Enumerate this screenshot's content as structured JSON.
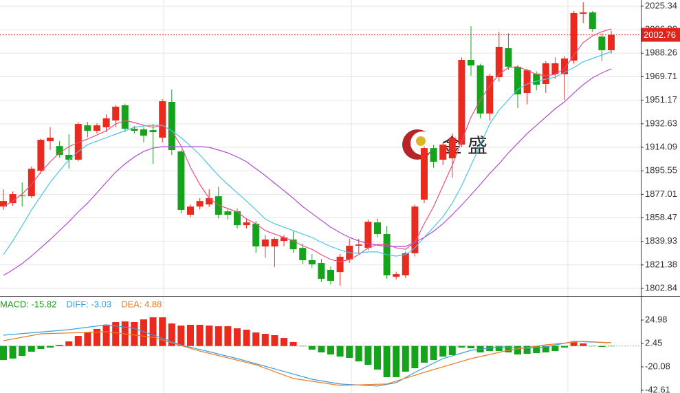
{
  "chart_data": [
    {
      "type": "candlestick",
      "up_color": "#ea2a1f",
      "down_color": "#16a31c",
      "ylim": [
        1796.9,
        2030.2
      ],
      "yticks": [
        2025.34,
        {
          "value": 2006.8,
          "label": "2006.80"
        },
        1988.26,
        1969.71,
        1951.17,
        1932.63,
        1914.09,
        1895.55,
        1877.01,
        1858.47,
        1839.93,
        1821.38,
        1802.84
      ],
      "grid": true,
      "current_price": 2002.76,
      "current_price_color": "#e0241b",
      "watermark": "金 盛",
      "open": [
        1867.4,
        1870.1,
        1876.1,
        1875.5,
        1895.6,
        1918.9,
        1915.1,
        1908.1,
        1904.3,
        1931.4,
        1927.1,
        1929.8,
        1935.2,
        1947.2,
        1928.7,
        1928.2,
        1927.6,
        1921.7,
        1949.9,
        1910.8,
        1860.9,
        1867.4,
        1869.0,
        1875.5,
        1863.6,
        1863.6,
        1852.7,
        1853.8,
        1835.9,
        1835.9,
        1840.3,
        1841.4,
        1834.8,
        1825.1,
        1822.9,
        1817.5,
        1815.8,
        1825.6,
        1836.5,
        1834.8,
        1854.9,
        1845.7,
        1812.0,
        1813.1,
        1830.5,
        1872.8,
        1913.5,
        1904.3,
        1905.4,
        1916.2,
        1983.0,
        1978.6,
        1940.7,
        1969.4,
        1992.2,
        1977.6,
        1956.9,
        1972.1,
        1964.0,
        1971.6,
        1971.6,
        1982.4,
        2019.3,
        2020.4,
        2001.4,
        1990.6
      ],
      "high": [
        1881.0,
        1879.3,
        1886.4,
        1899.0,
        1921.0,
        1929.8,
        1919.0,
        1924.4,
        1934.0,
        1934.0,
        1933.0,
        1940.0,
        1947.5,
        1948.5,
        1931.0,
        1930.0,
        1932.5,
        1952.0,
        1959.7,
        1912.0,
        1869.0,
        1874.0,
        1881.0,
        1883.0,
        1866.0,
        1866.0,
        1858.0,
        1856.0,
        1845.0,
        1843.0,
        1845.0,
        1848.0,
        1838.0,
        1830.0,
        1826.0,
        1820.0,
        1830.0,
        1842.0,
        1842.0,
        1857.0,
        1858.0,
        1852.0,
        1816.0,
        1832.0,
        1869.0,
        1915.0,
        1916.0,
        1918.0,
        1925.0,
        1985.0,
        2009.6,
        1980.0,
        1972.0,
        2005.0,
        2004.0,
        1979.0,
        1976.0,
        1974.0,
        1982.0,
        1985.0,
        1986.0,
        2021.5,
        2028.5,
        2021.5,
        2004.0,
        2006.0
      ],
      "low": [
        1864.7,
        1868.0,
        1867.4,
        1874.0,
        1893.0,
        1911.9,
        1906.0,
        1897.2,
        1903.0,
        1922.0,
        1925.0,
        1926.0,
        1930.0,
        1926.0,
        1925.0,
        1918.0,
        1901.0,
        1918.0,
        1908.0,
        1862.0,
        1859.0,
        1865.0,
        1867.0,
        1858.0,
        1857.0,
        1850.0,
        1850.0,
        1831.0,
        1827.0,
        1819.6,
        1836.0,
        1831.0,
        1822.0,
        1819.0,
        1808.0,
        1806.0,
        1805.0,
        1823.0,
        1830.0,
        1833.0,
        1843.0,
        1810.4,
        1810.0,
        1811.0,
        1828.0,
        1870.0,
        1898.0,
        1900.0,
        1890.0,
        1914.0,
        1970.5,
        1937.0,
        1935.0,
        1966.0,
        1975.0,
        1945.0,
        1948.0,
        1959.0,
        1957.0,
        1968.0,
        1951.5,
        1980.0,
        2012.0,
        2005.0,
        1982.0,
        1988.0
      ],
      "close": [
        1871.7,
        1877.2,
        1875.5,
        1897.2,
        1920.0,
        1921.7,
        1908.1,
        1904.3,
        1932.5,
        1927.1,
        1931.4,
        1936.9,
        1946.1,
        1928.7,
        1927.1,
        1923.3,
        1926.0,
        1950.4,
        1911.9,
        1864.7,
        1867.4,
        1871.7,
        1874.0,
        1860.9,
        1860.9,
        1852.7,
        1854.9,
        1835.9,
        1841.4,
        1841.9,
        1843.0,
        1833.7,
        1825.1,
        1821.8,
        1810.4,
        1808.8,
        1827.8,
        1836.5,
        1837.5,
        1855.4,
        1845.7,
        1813.1,
        1814.2,
        1830.5,
        1867.4,
        1913.5,
        1902.7,
        1916.2,
        1921.7,
        1983.0,
        1978.6,
        1940.7,
        1970.5,
        1993.3,
        1977.6,
        1955.8,
        1974.8,
        1963.4,
        1980.3,
        1980.3,
        1984.1,
        2019.9,
        2020.4,
        2007.4,
        1990.6,
        2002.76
      ],
      "series": [
        {
          "color": "#e9507a",
          "values": [
            1867.4,
            1871.7,
            1877.2,
            1884.8,
            1894.5,
            1902.7,
            1909.7,
            1914.6,
            1917.9,
            1920.6,
            1923.8,
            1927.1,
            1932.5,
            1935.2,
            1933.6,
            1931.4,
            1929.8,
            1931.4,
            1927.1,
            1915.1,
            1898.3,
            1884.8,
            1873.9,
            1868.5,
            1865.8,
            1863.1,
            1857.6,
            1853.8,
            1848.4,
            1845.7,
            1843.0,
            1840.3,
            1836.5,
            1833.7,
            1829.4,
            1825.6,
            1824.0,
            1825.6,
            1829.4,
            1834.8,
            1837.5,
            1837.5,
            1834.8,
            1833.7,
            1839.2,
            1853.8,
            1867.4,
            1883.7,
            1900.0,
            1918.9,
            1937.9,
            1951.5,
            1962.4,
            1971.6,
            1977.0,
            1977.6,
            1974.8,
            1971.6,
            1970.5,
            1971.6,
            1975.9,
            1986.8,
            1996.6,
            2002.0,
            2005.2,
            2007.4
          ]
        },
        {
          "color": "#4cc3e6",
          "values": [
            1829.4,
            1840.3,
            1852.2,
            1864.7,
            1875.5,
            1886.4,
            1895.6,
            1904.3,
            1910.8,
            1916.2,
            1918.9,
            1921.7,
            1924.4,
            1927.1,
            1929.8,
            1930.9,
            1931.4,
            1931.4,
            1927.1,
            1921.7,
            1915.1,
            1908.1,
            1899.9,
            1891.8,
            1884.8,
            1878.2,
            1871.7,
            1864.7,
            1857.6,
            1853.8,
            1851.1,
            1848.4,
            1845.7,
            1843.0,
            1839.2,
            1835.9,
            1833.2,
            1831.0,
            1830.5,
            1831.6,
            1831.6,
            1829.4,
            1828.3,
            1829.4,
            1834.8,
            1843.0,
            1851.1,
            1859.3,
            1870.1,
            1883.7,
            1899.9,
            1916.2,
            1932.5,
            1943.4,
            1951.5,
            1959.7,
            1964.0,
            1966.2,
            1967.8,
            1969.4,
            1973.2,
            1977.0,
            1981.4,
            1984.1,
            1986.8,
            1989.5
          ]
        },
        {
          "color": "#b14bd2",
          "values": [
            1813.1,
            1817.5,
            1822.4,
            1828.3,
            1834.8,
            1841.4,
            1848.4,
            1855.4,
            1863.1,
            1870.1,
            1878.2,
            1886.4,
            1894.5,
            1901.0,
            1906.5,
            1910.8,
            1913.5,
            1914.6,
            1914.6,
            1914.6,
            1914.6,
            1914.6,
            1914.1,
            1911.9,
            1909.7,
            1906.5,
            1902.7,
            1897.2,
            1891.8,
            1885.8,
            1879.9,
            1873.9,
            1867.4,
            1861.9,
            1856.5,
            1851.1,
            1846.8,
            1843.0,
            1840.3,
            1838.1,
            1837.0,
            1835.9,
            1835.9,
            1835.9,
            1839.2,
            1843.0,
            1847.9,
            1853.8,
            1860.9,
            1868.5,
            1876.6,
            1884.8,
            1893.4,
            1901.0,
            1909.7,
            1917.3,
            1924.9,
            1931.4,
            1937.9,
            1944.5,
            1949.9,
            1956.9,
            1963.4,
            1968.9,
            1972.7,
            1975.9
          ]
        }
      ]
    },
    {
      "type": "macd",
      "up_color": "#ea2a1f",
      "down_color": "#16a31c",
      "ylim": [
        -45.26,
        47.5
      ],
      "yticks": [
        24.98,
        2.45,
        -20.08,
        -42.61
      ],
      "legend": [
        {
          "label": "MACD: -15.82",
          "color": "#16a31c"
        },
        {
          "label": "DIFF: -3.03",
          "color": "#3a9de0"
        },
        {
          "label": "DEA: 4.88",
          "color": "#f07a22"
        }
      ],
      "values": [
        -13.5,
        -12.1,
        -9.5,
        -5.5,
        -2.9,
        -1.5,
        1.1,
        4.4,
        9.7,
        13.0,
        16.4,
        19.7,
        23.0,
        23.7,
        23.0,
        25.6,
        27.6,
        27.6,
        21.7,
        19.7,
        20.4,
        20.4,
        19.7,
        19.0,
        19.0,
        17.0,
        15.7,
        13.0,
        11.7,
        10.4,
        7.7,
        3.8,
        -0.2,
        -3.5,
        -6.2,
        -8.2,
        -10.2,
        -11.5,
        -14.8,
        -18.1,
        -22.7,
        -30.0,
        -30.0,
        -24.7,
        -21.4,
        -16.1,
        -13.5,
        -10.2,
        -8.8,
        -1.5,
        -2.2,
        -6.2,
        -4.9,
        -4.9,
        -6.2,
        -8.2,
        -7.5,
        -6.9,
        -6.2,
        -4.9,
        -1.5,
        3.8,
        2.5,
        -0.2,
        -0.9,
        -0.2
      ],
      "series": [
        {
          "color": "#3a9de0",
          "x": [
            0,
            7,
            11,
            14,
            19,
            22,
            25,
            29,
            33,
            36,
            40,
            42,
            44,
            47,
            50,
            53,
            56,
            58,
            61,
            65
          ],
          "values": [
            10.4,
            15.7,
            20.4,
            17.0,
            0.9,
            -5.5,
            -12.1,
            -22.0,
            -32.0,
            -36.6,
            -38.6,
            -35.3,
            -25.4,
            -12.1,
            -4.2,
            -0.9,
            -2.2,
            -0.9,
            4.4,
            3.1
          ]
        },
        {
          "color": "#f07a22",
          "x": [
            0,
            4,
            11,
            16,
            21,
            27,
            31,
            36,
            41,
            45,
            50,
            54,
            58,
            62,
            65
          ],
          "values": [
            5.1,
            11.7,
            13.7,
            8.4,
            -4.9,
            -18.1,
            -31.3,
            -38.0,
            -36.6,
            -25.4,
            -12.1,
            -4.2,
            1.1,
            4.4,
            3.1
          ]
        }
      ]
    }
  ]
}
